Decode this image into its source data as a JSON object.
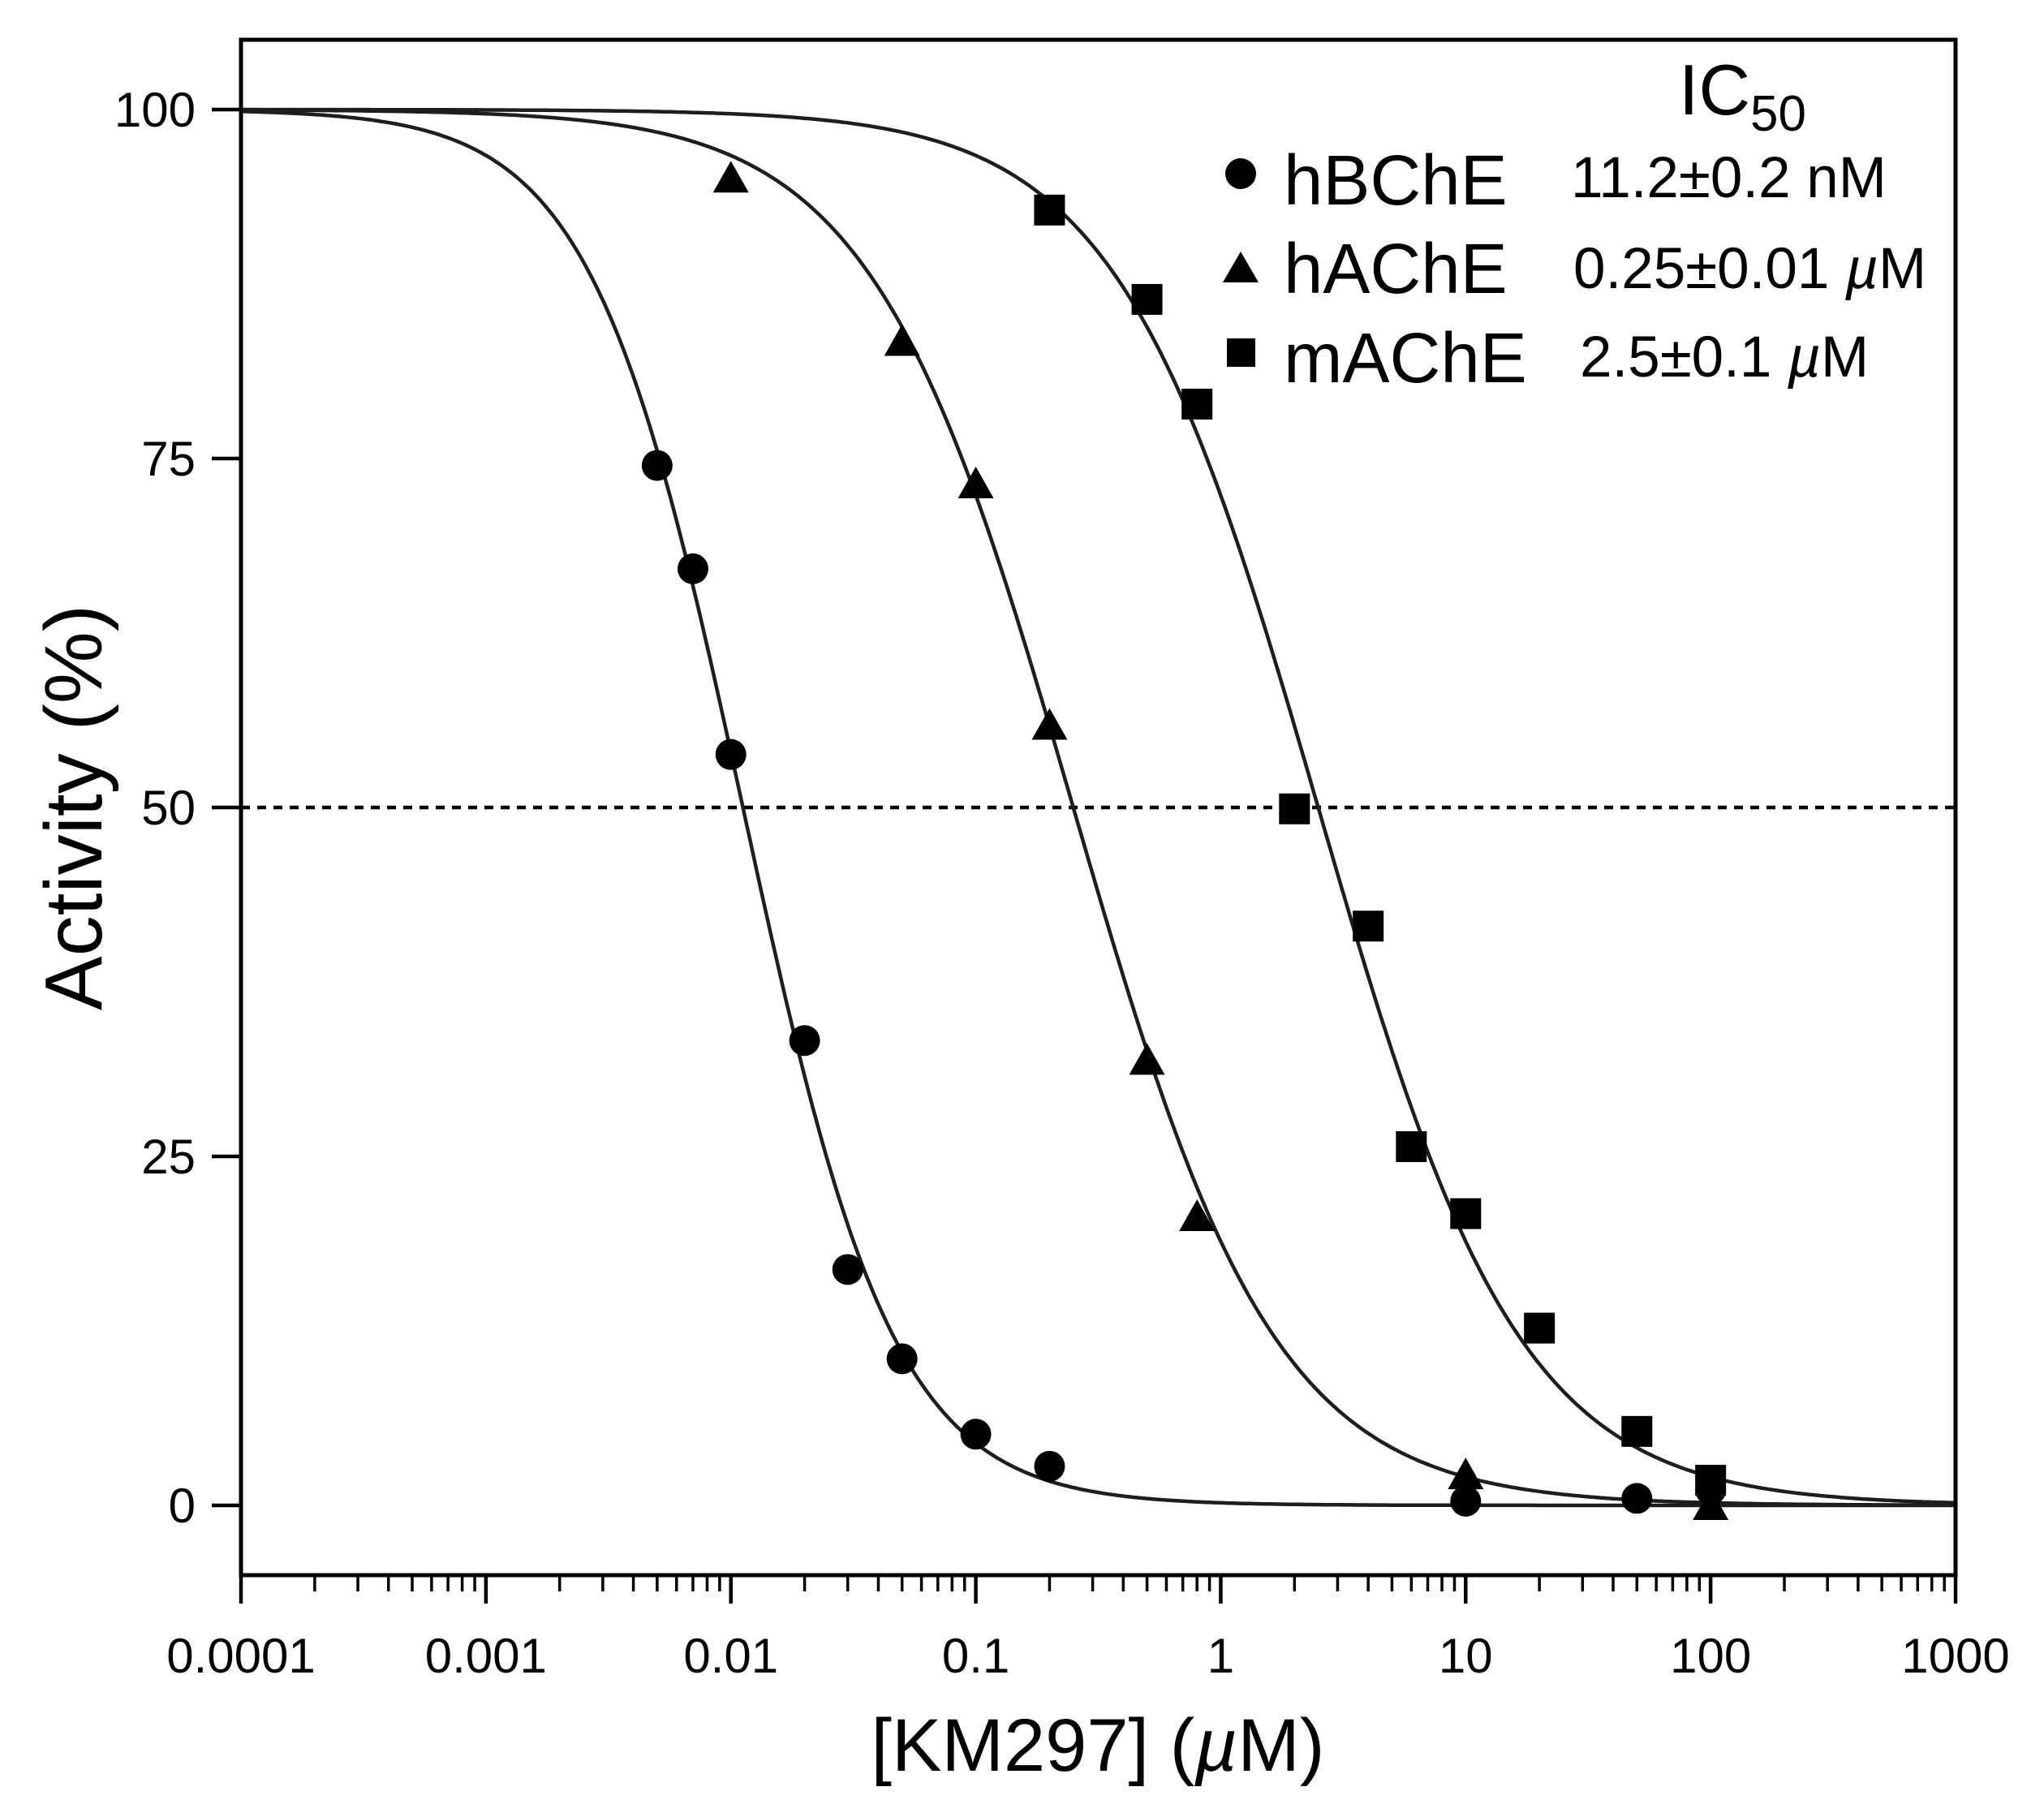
{
  "chart_data": {
    "type": "scatter",
    "xlabel_parts": [
      "[KM297] (",
      "µ",
      "M)"
    ],
    "ylabel": "Activity (%)",
    "x_log_scale": true,
    "xlim": [
      0.0001,
      1000
    ],
    "ylim": [
      -5,
      105
    ],
    "x_ticks": [
      0.0001,
      0.001,
      0.01,
      0.1,
      1,
      10,
      100,
      1000
    ],
    "x_tick_labels": [
      "0.0001",
      "0.001",
      "0.01",
      "0.1",
      "1",
      "10",
      "100",
      "1000"
    ],
    "y_ticks": [
      0,
      25,
      50,
      75,
      100
    ],
    "y_tick_labels": [
      "0",
      "25",
      "50",
      "75",
      "100"
    ],
    "grid": false,
    "reference_line": {
      "y": 50
    },
    "legend": {
      "position": "top-right",
      "title": "IC",
      "title_subscript": "50"
    },
    "series": [
      {
        "name": "hBChE",
        "marker": "circle",
        "ic50_label_parts": [
          "11.2±0.2 nM"
        ],
        "fit": {
          "ic50_uM": 0.0112,
          "hill": 1.4
        },
        "x": [
          0.005,
          0.007,
          0.01,
          0.02,
          0.03,
          0.05,
          0.1,
          0.2,
          10,
          50,
          100
        ],
        "y": [
          74.5,
          67.1,
          53.8,
          33.3,
          16.9,
          10.5,
          5.1,
          2.8,
          0.3,
          0.5,
          1.1
        ]
      },
      {
        "name": "hAChE",
        "marker": "triangle",
        "ic50_label_parts": [
          "0.25±0.01 ",
          "µ",
          "M"
        ],
        "fit": {
          "ic50_uM": 0.25,
          "hill": 1.05
        },
        "x": [
          0.01,
          0.05,
          0.1,
          0.2,
          0.5,
          0.8,
          10,
          100
        ],
        "y": [
          95.1,
          83.4,
          73.2,
          55.9,
          31.9,
          20.7,
          2.2,
          0.0
        ]
      },
      {
        "name": "mAChE",
        "marker": "square",
        "ic50_label_parts": [
          "2.5±0.1 ",
          "µ",
          "M"
        ],
        "fit": {
          "ic50_uM": 2.5,
          "hill": 1.05
        },
        "x": [
          0.2,
          0.5,
          0.8,
          2,
          4,
          6,
          10,
          20,
          50,
          100
        ],
        "y": [
          92.8,
          86.4,
          78.9,
          49.9,
          41.5,
          25.7,
          20.9,
          12.7,
          5.3,
          1.8
        ]
      }
    ]
  }
}
